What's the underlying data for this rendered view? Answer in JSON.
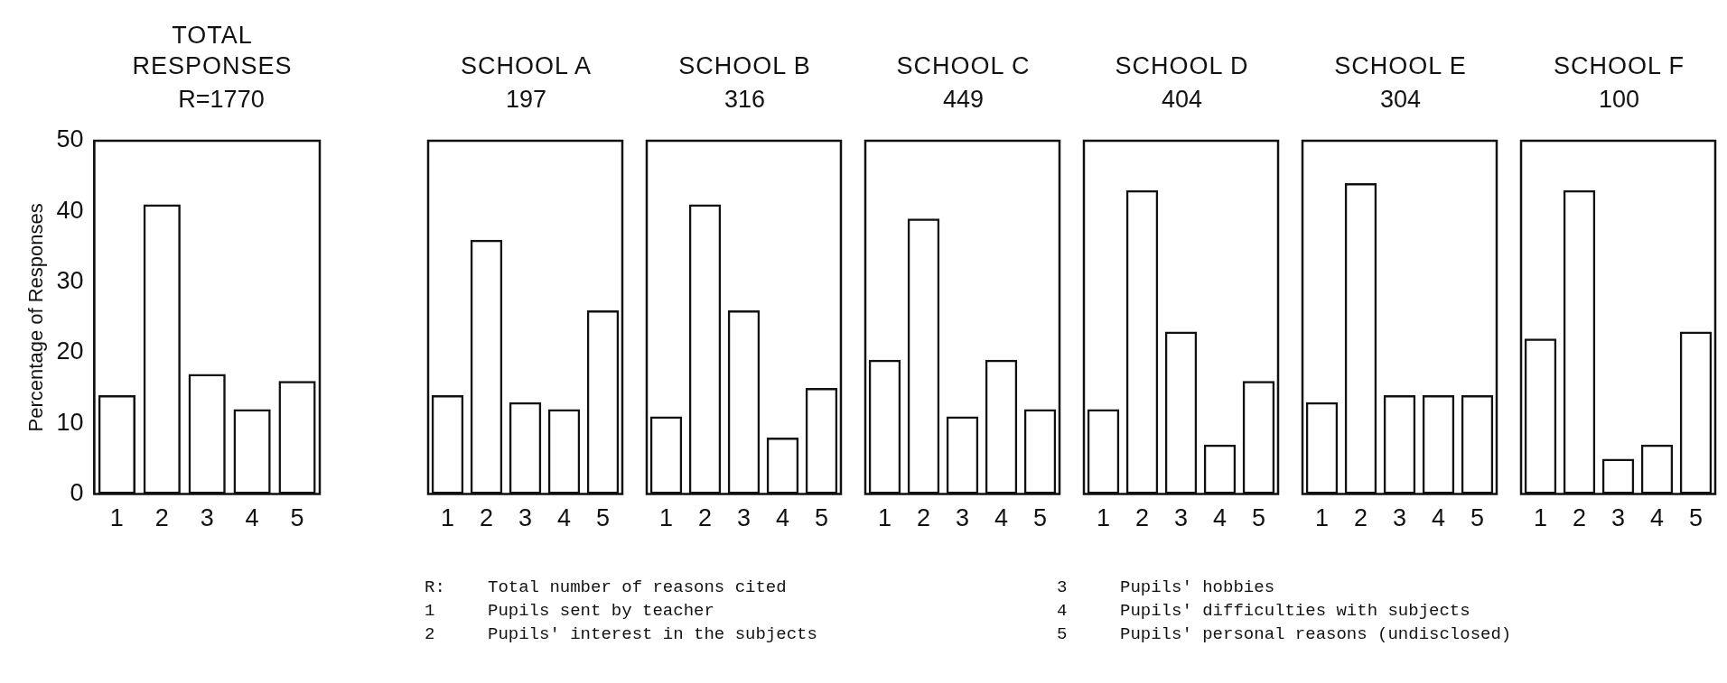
{
  "chart_data": [
    {
      "type": "bar",
      "title": "TOTAL RESPONSES",
      "subtitle": "R=1770",
      "ylabel": "Percentage of Responses",
      "categories": [
        "1",
        "2",
        "3",
        "4",
        "5"
      ],
      "values": [
        14,
        41,
        17,
        12,
        16
      ],
      "color": "#111111",
      "ylim": [
        0,
        50
      ],
      "yticks": [
        0,
        10,
        20,
        30,
        40,
        50
      ],
      "grid": false,
      "legend": false,
      "annotations": [
        "R: Total number of reasons cited",
        "1 Pupils sent by teacher",
        "2 Pupils' interest in the subjects",
        "3 Pupils' hobbies",
        "4 Pupils' difficulties with subjects",
        "5 Pupils' personal reasons (undisclosed)"
      ]
    },
    {
      "type": "bar",
      "title": "SCHOOL A",
      "subtitle": "197",
      "categories": [
        "1",
        "2",
        "3",
        "4",
        "5"
      ],
      "values": [
        14,
        36,
        13,
        12,
        26
      ],
      "color": "#111111",
      "ylim": [
        0,
        50
      ],
      "grid": false,
      "legend": false,
      "tick_labels": "x"
    },
    {
      "type": "bar",
      "title": "SCHOOL B",
      "subtitle": "316",
      "categories": [
        "1",
        "2",
        "3",
        "4",
        "5"
      ],
      "values": [
        11,
        41,
        26,
        8,
        15
      ],
      "color": "#111111",
      "ylim": [
        0,
        50
      ],
      "grid": false,
      "legend": false,
      "tick_labels": "x"
    },
    {
      "type": "bar",
      "title": "SCHOOL C",
      "subtitle": "449",
      "categories": [
        "1",
        "2",
        "3",
        "4",
        "5"
      ],
      "values": [
        19,
        39,
        11,
        19,
        12
      ],
      "color": "#111111",
      "ylim": [
        0,
        50
      ],
      "grid": false,
      "legend": false,
      "tick_labels": "x"
    },
    {
      "type": "bar",
      "title": "SCHOOL D",
      "subtitle": "404",
      "categories": [
        "1",
        "2",
        "3",
        "4",
        "5"
      ],
      "values": [
        12,
        43,
        23,
        7,
        16
      ],
      "color": "#111111",
      "ylim": [
        0,
        50
      ],
      "grid": false,
      "legend": false,
      "tick_labels": "x"
    },
    {
      "type": "bar",
      "title": "SCHOOL E",
      "subtitle": "304",
      "categories": [
        "1",
        "2",
        "3",
        "4",
        "5"
      ],
      "values": [
        13,
        44,
        14,
        14,
        14
      ],
      "color": "#111111",
      "ylim": [
        0,
        50
      ],
      "grid": false,
      "legend": false,
      "tick_labels": "x"
    },
    {
      "type": "bar",
      "title": "SCHOOL F",
      "subtitle": "100",
      "categories": [
        "1",
        "2",
        "3",
        "4",
        "5"
      ],
      "values": [
        22,
        43,
        5,
        7,
        23
      ],
      "color": "#111111",
      "ylim": [
        0,
        50
      ],
      "grid": false,
      "legend": false,
      "tick_labels": "x"
    }
  ]
}
